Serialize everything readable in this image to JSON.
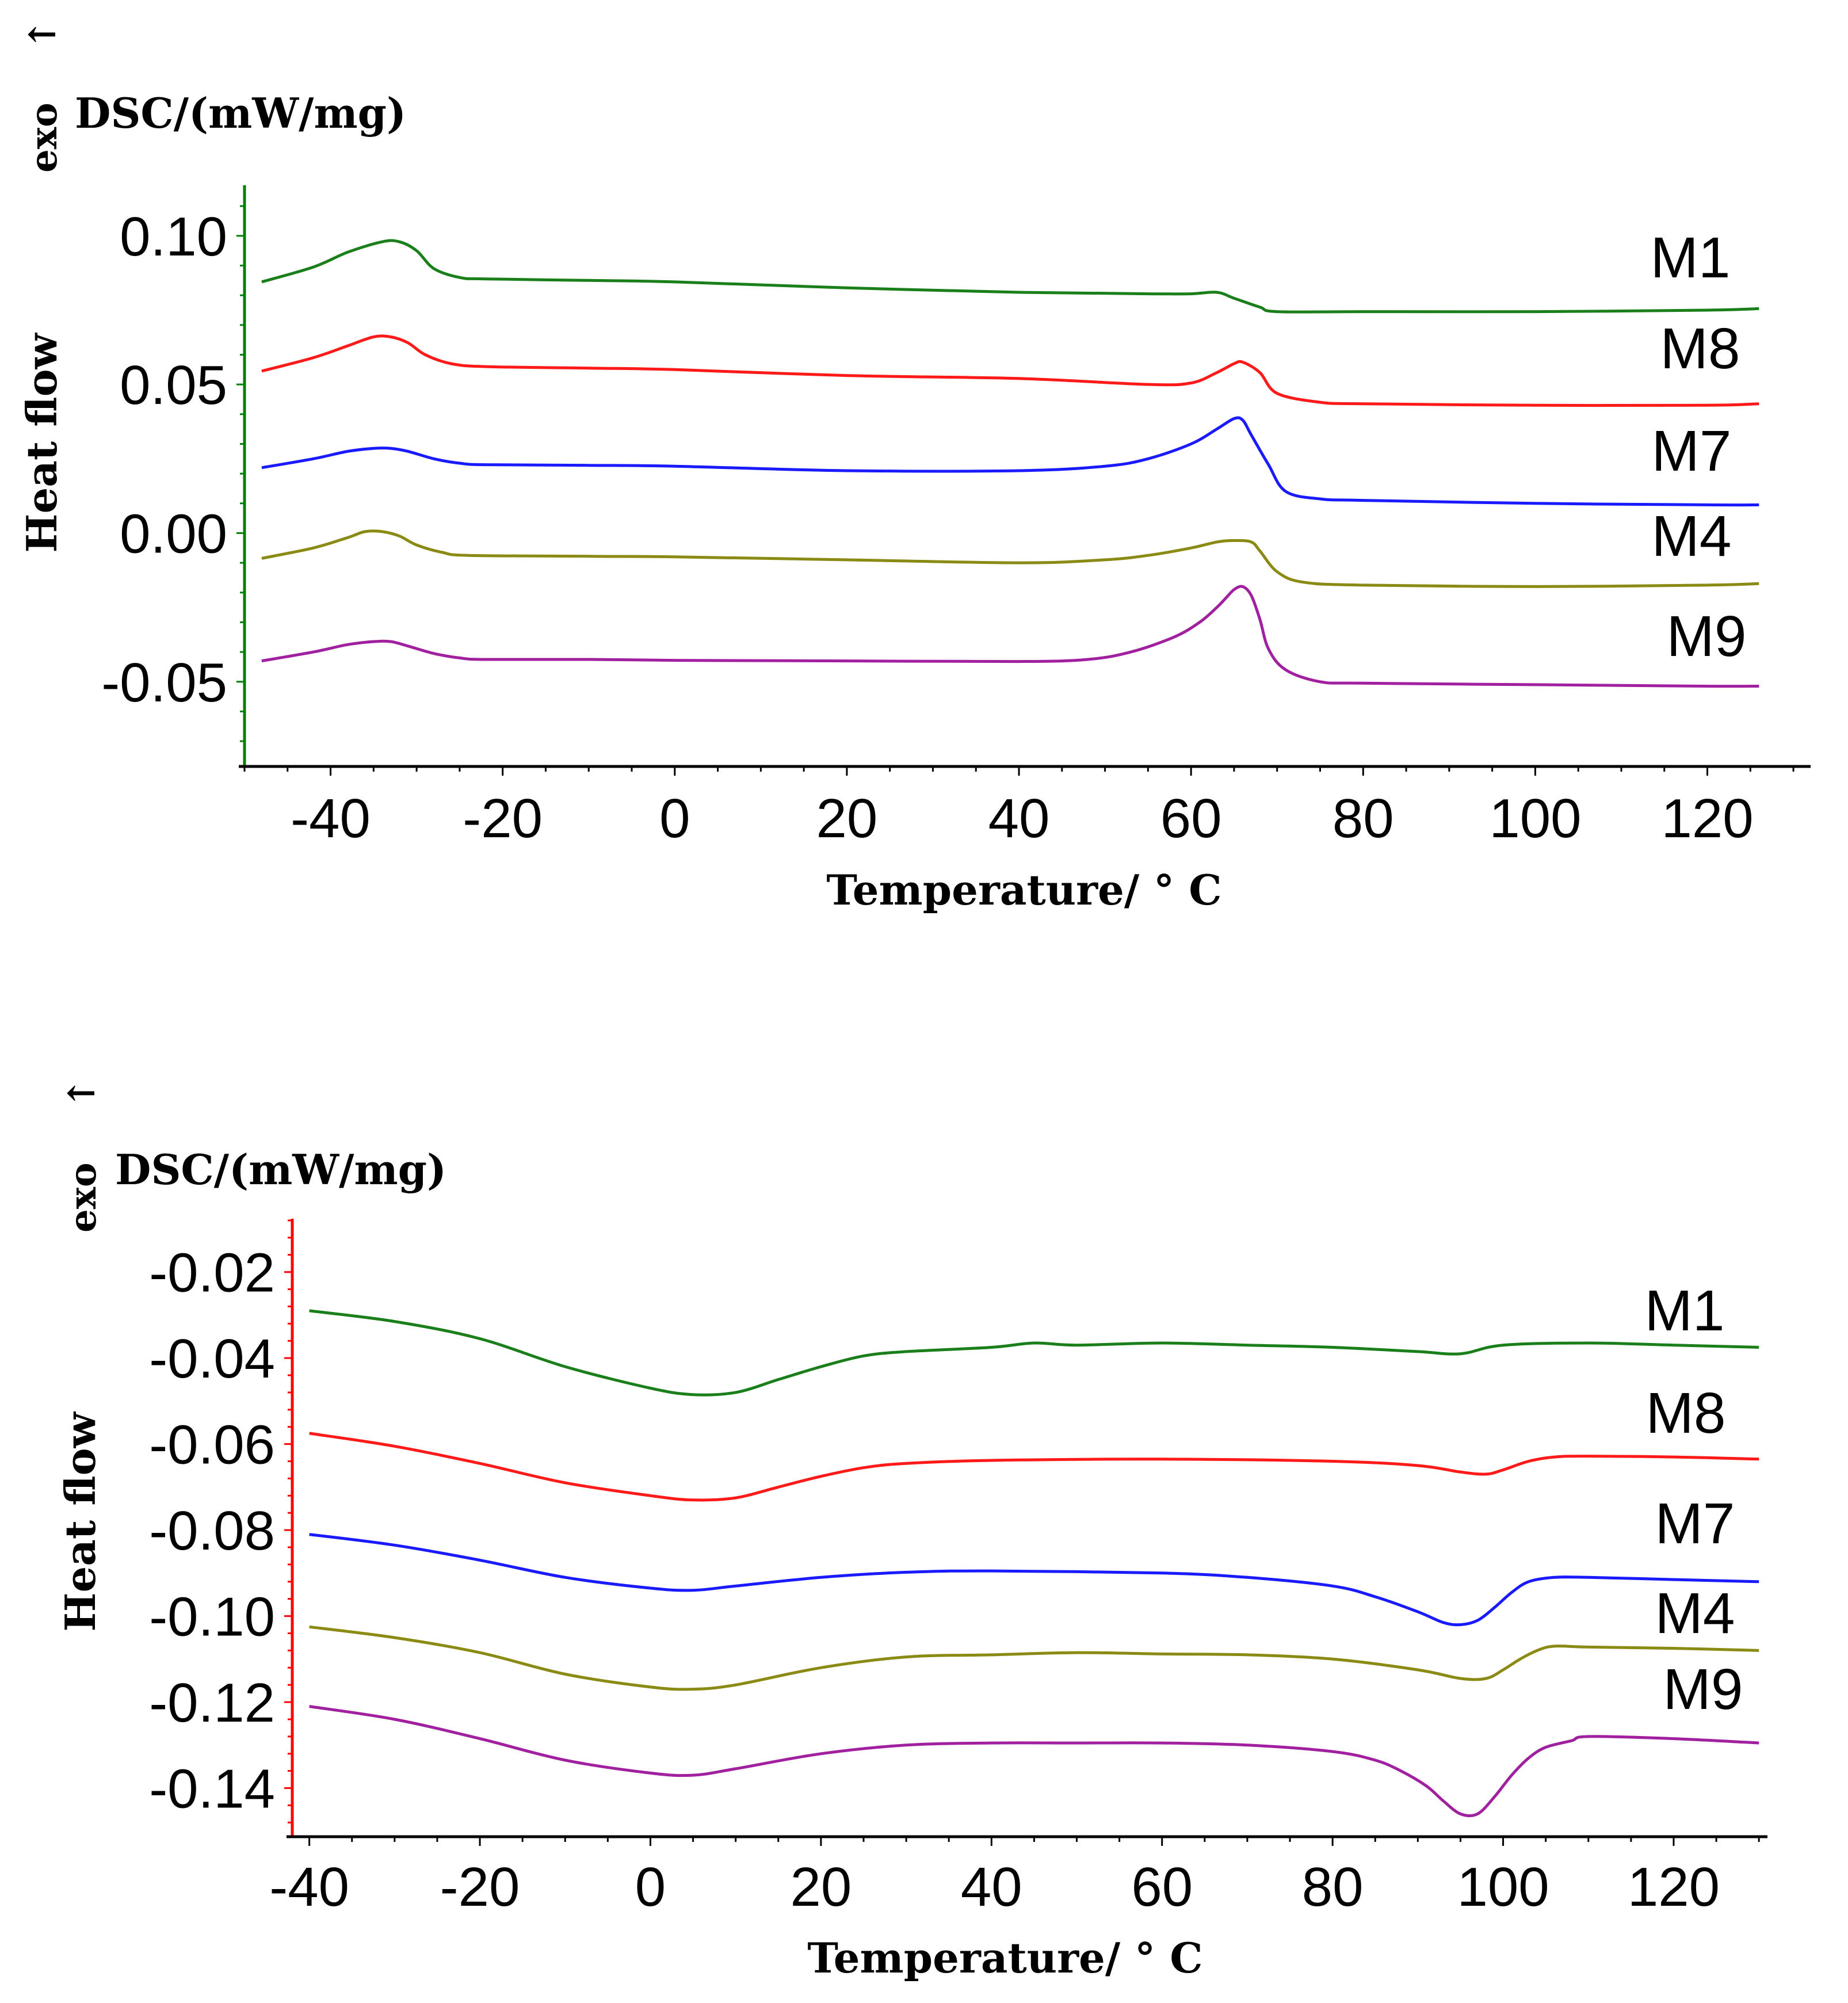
{
  "chart_data": [
    {
      "type": "line",
      "title": "",
      "exo_label": "exo",
      "arrow": "↑",
      "ylabel_top": "DSC/(mW/mg)",
      "ylabel": "Heat flow",
      "xlabel": "Temperature/ ° C",
      "xlim": [
        -50,
        132
      ],
      "ylim": [
        -0.0785,
        0.117
      ],
      "x_ticks": [
        -40,
        -20,
        0,
        20,
        40,
        60,
        80,
        100,
        120
      ],
      "x_tick_labels": [
        "-40",
        "-20",
        "0",
        "20",
        "40",
        "60",
        "80",
        "100",
        "120"
      ],
      "y_ticks": [
        0.1,
        0.05,
        0.0,
        -0.05
      ],
      "y_tick_labels": [
        "0.10",
        "0.05",
        "0.00",
        "-0.05"
      ],
      "axis_color": "#008000",
      "series": [
        {
          "name": "M1",
          "color": "#1a7f1a",
          "x": [
            -48,
            -42,
            -38,
            -34,
            -32,
            -30,
            -28,
            -25,
            -22,
            -10,
            0,
            20,
            40,
            55,
            60,
            63,
            65,
            68,
            70,
            80,
            100,
            120,
            126
          ],
          "y": [
            0.0845,
            0.0895,
            0.0945,
            0.098,
            0.098,
            0.095,
            0.089,
            0.086,
            0.0855,
            0.085,
            0.0845,
            0.0825,
            0.081,
            0.0805,
            0.0805,
            0.081,
            0.079,
            0.076,
            0.0745,
            0.0745,
            0.0745,
            0.075,
            0.0755
          ]
        },
        {
          "name": "M8",
          "color": "#ff1a1a",
          "x": [
            -48,
            -42,
            -38,
            -35,
            -33,
            -31,
            -29,
            -26,
            -22,
            -10,
            0,
            20,
            40,
            55,
            60,
            63,
            65,
            66,
            68,
            70,
            75,
            80,
            100,
            120,
            126
          ],
          "y": [
            0.0545,
            0.059,
            0.063,
            0.066,
            0.066,
            0.064,
            0.06,
            0.057,
            0.056,
            0.0555,
            0.055,
            0.053,
            0.052,
            0.05,
            0.0505,
            0.054,
            0.057,
            0.0575,
            0.054,
            0.047,
            0.044,
            0.0435,
            0.043,
            0.043,
            0.0435
          ]
        },
        {
          "name": "M7",
          "color": "#1a1aff",
          "x": [
            -48,
            -42,
            -38,
            -35,
            -33,
            -31,
            -28,
            -25,
            -22,
            -10,
            0,
            20,
            40,
            50,
            55,
            60,
            63,
            65,
            66,
            67,
            69,
            71,
            75,
            80,
            100,
            120,
            126
          ],
          "y": [
            0.022,
            0.025,
            0.0275,
            0.0285,
            0.0285,
            0.0275,
            0.025,
            0.0235,
            0.023,
            0.0228,
            0.0225,
            0.021,
            0.021,
            0.0225,
            0.025,
            0.03,
            0.035,
            0.0385,
            0.038,
            0.033,
            0.023,
            0.014,
            0.0115,
            0.011,
            0.01,
            0.0095,
            0.0095
          ]
        },
        {
          "name": "M4",
          "color": "#8a8a14",
          "x": [
            -48,
            -42,
            -38,
            -36,
            -34,
            -32,
            -30,
            -27,
            -24,
            -10,
            0,
            20,
            40,
            50,
            55,
            60,
            63,
            65,
            67,
            68,
            70,
            73,
            80,
            100,
            120,
            126
          ],
          "y": [
            -0.0085,
            -0.005,
            -0.0015,
            0.0005,
            0.0005,
            -0.001,
            -0.004,
            -0.0065,
            -0.0075,
            -0.0078,
            -0.008,
            -0.009,
            -0.01,
            -0.009,
            -0.0075,
            -0.005,
            -0.003,
            -0.0025,
            -0.003,
            -0.006,
            -0.013,
            -0.0165,
            -0.0175,
            -0.018,
            -0.0175,
            -0.017
          ]
        },
        {
          "name": "M9",
          "color": "#a020a0",
          "x": [
            -48,
            -42,
            -38,
            -35,
            -33,
            -31,
            -28,
            -25,
            -22,
            -10,
            0,
            20,
            40,
            48,
            53,
            58,
            61,
            63,
            64,
            65,
            66,
            67,
            68,
            69,
            71,
            75,
            80,
            100,
            120,
            126
          ],
          "y": [
            -0.043,
            -0.04,
            -0.0375,
            -0.0365,
            -0.0365,
            -0.038,
            -0.0405,
            -0.042,
            -0.0425,
            -0.0425,
            -0.0428,
            -0.043,
            -0.0432,
            -0.0425,
            -0.04,
            -0.035,
            -0.03,
            -0.025,
            -0.022,
            -0.019,
            -0.018,
            -0.021,
            -0.029,
            -0.039,
            -0.046,
            -0.05,
            -0.0505,
            -0.051,
            -0.0515,
            -0.0515
          ]
        }
      ]
    },
    {
      "type": "line",
      "title": "",
      "exo_label": "exo",
      "arrow": "↑",
      "ylabel_top": "DSC/(mW/mg)",
      "ylabel": "Heat flow",
      "xlabel": "Temperature/ ° C",
      "xlim": [
        -42,
        131
      ],
      "ylim": [
        -0.1513,
        -0.0076
      ],
      "x_ticks": [
        -40,
        -20,
        0,
        20,
        40,
        60,
        80,
        100,
        120
      ],
      "x_tick_labels": [
        "-40",
        "-20",
        "0",
        "20",
        "40",
        "60",
        "80",
        "100",
        "120"
      ],
      "y_ticks": [
        -0.02,
        -0.04,
        -0.06,
        -0.08,
        -0.1,
        -0.12,
        -0.14
      ],
      "y_tick_labels": [
        "-0.02",
        "-0.04",
        "-0.06",
        "-0.08",
        "-0.10",
        "-0.12",
        "-0.14"
      ],
      "axis_color": "#ff0000",
      "series": [
        {
          "name": "M1",
          "color": "#1a7f1a",
          "x": [
            -40,
            -30,
            -20,
            -10,
            0,
            5,
            10,
            15,
            20,
            25,
            30,
            40,
            45,
            50,
            60,
            70,
            80,
            90,
            95,
            100,
            110,
            120,
            130
          ],
          "y": [
            -0.029,
            -0.0315,
            -0.0355,
            -0.042,
            -0.047,
            -0.0485,
            -0.048,
            -0.045,
            -0.042,
            -0.0395,
            -0.0385,
            -0.0375,
            -0.0365,
            -0.037,
            -0.0365,
            -0.037,
            -0.0375,
            -0.0385,
            -0.039,
            -0.037,
            -0.0365,
            -0.037,
            -0.0375
          ]
        },
        {
          "name": "M8",
          "color": "#ff1a1a",
          "x": [
            -40,
            -30,
            -20,
            -10,
            0,
            5,
            10,
            15,
            20,
            25,
            30,
            40,
            60,
            80,
            90,
            95,
            98,
            100,
            103,
            106,
            110,
            120,
            130
          ],
          "y": [
            -0.0575,
            -0.0605,
            -0.0645,
            -0.069,
            -0.072,
            -0.073,
            -0.0725,
            -0.07,
            -0.0675,
            -0.0655,
            -0.0645,
            -0.0638,
            -0.0635,
            -0.064,
            -0.065,
            -0.0665,
            -0.067,
            -0.066,
            -0.064,
            -0.063,
            -0.0628,
            -0.063,
            -0.0635
          ]
        },
        {
          "name": "M7",
          "color": "#1a1aff",
          "x": [
            -40,
            -30,
            -20,
            -10,
            0,
            5,
            10,
            20,
            30,
            40,
            60,
            70,
            80,
            85,
            90,
            93,
            95,
            97,
            99,
            101,
            103,
            106,
            110,
            120,
            130
          ],
          "y": [
            -0.081,
            -0.0835,
            -0.087,
            -0.091,
            -0.0935,
            -0.094,
            -0.093,
            -0.091,
            -0.0898,
            -0.0895,
            -0.09,
            -0.091,
            -0.093,
            -0.0955,
            -0.099,
            -0.1015,
            -0.102,
            -0.101,
            -0.098,
            -0.0945,
            -0.092,
            -0.091,
            -0.091,
            -0.0915,
            -0.092
          ]
        },
        {
          "name": "M4",
          "color": "#8a8a14",
          "x": [
            -40,
            -30,
            -20,
            -10,
            0,
            5,
            10,
            20,
            30,
            40,
            50,
            60,
            70,
            80,
            90,
            95,
            98,
            100,
            102,
            104,
            106,
            110,
            120,
            130
          ],
          "y": [
            -0.1025,
            -0.105,
            -0.1085,
            -0.1135,
            -0.1165,
            -0.117,
            -0.116,
            -0.112,
            -0.1095,
            -0.109,
            -0.1085,
            -0.1088,
            -0.109,
            -0.11,
            -0.1125,
            -0.1145,
            -0.1145,
            -0.1125,
            -0.11,
            -0.108,
            -0.107,
            -0.1072,
            -0.1075,
            -0.108
          ]
        },
        {
          "name": "M9",
          "color": "#a020a0",
          "x": [
            -40,
            -30,
            -20,
            -10,
            0,
            5,
            10,
            20,
            30,
            40,
            50,
            60,
            70,
            80,
            85,
            88,
            91,
            93,
            95,
            97,
            99,
            101,
            103,
            105,
            108,
            110,
            120,
            130
          ],
          "y": [
            -0.121,
            -0.124,
            -0.1285,
            -0.1335,
            -0.1365,
            -0.137,
            -0.1355,
            -0.132,
            -0.13,
            -0.1295,
            -0.1295,
            -0.1295,
            -0.13,
            -0.1315,
            -0.1335,
            -0.136,
            -0.1395,
            -0.143,
            -0.146,
            -0.146,
            -0.142,
            -0.137,
            -0.133,
            -0.1305,
            -0.129,
            -0.128,
            -0.1285,
            -0.1295
          ]
        }
      ]
    }
  ]
}
